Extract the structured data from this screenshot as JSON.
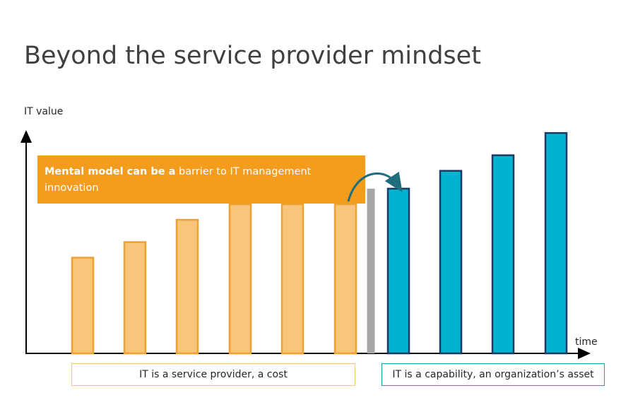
{
  "chart_data": {
    "type": "bar",
    "title": "Beyond the service provider mindset",
    "y_label": "IT value",
    "x_label": "time",
    "ylim": [
      0,
      100
    ],
    "values": [
      43,
      50,
      60,
      67,
      67,
      67,
      74,
      74,
      82,
      89,
      99
    ],
    "colors": [
      "#f8c57b",
      "#f8c57b",
      "#f8c57b",
      "#f8c57b",
      "#f8c57b",
      "#f8c57b",
      "#a6a6a6",
      "#00b4d0",
      "#00b4d0",
      "#00b4d0",
      "#00b4d0"
    ],
    "edge_colors": [
      "#f0a030",
      "#f0a030",
      "#f0a030",
      "#f0a030",
      "#f0a030",
      "#f0a030",
      "#a6a6a6",
      "#1f3864",
      "#1f3864",
      "#1f3864",
      "#1f3864"
    ],
    "annotation": {
      "bold": "Mental model can be a",
      "text": "barrier to IT management innovation"
    },
    "phases": [
      {
        "label": "IT is a service provider, a cost",
        "color": "#f8c57b"
      },
      {
        "label": "IT is a capability, an organization’s asset",
        "color": "#1aa3b5"
      }
    ]
  }
}
